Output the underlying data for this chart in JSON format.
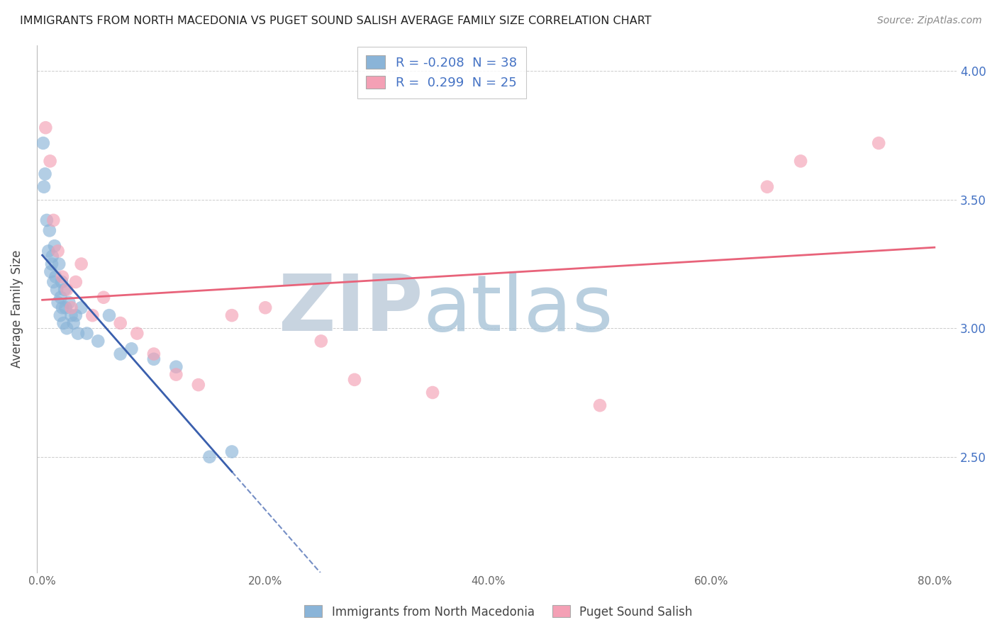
{
  "title": "IMMIGRANTS FROM NORTH MACEDONIA VS PUGET SOUND SALISH AVERAGE FAMILY SIZE CORRELATION CHART",
  "source": "Source: ZipAtlas.com",
  "ylabel": "Average Family Size",
  "xlabel_ticks": [
    "0.0%",
    "20.0%",
    "40.0%",
    "60.0%",
    "80.0%"
  ],
  "xlabel_vals": [
    0.0,
    20.0,
    40.0,
    60.0,
    80.0
  ],
  "ytick_labels": [
    "4.00",
    "3.50",
    "3.00",
    "2.50"
  ],
  "ytick_vals": [
    4.0,
    3.5,
    3.0,
    2.5
  ],
  "ylim": [
    2.05,
    4.1
  ],
  "xlim": [
    -0.5,
    82.0
  ],
  "blue_R": -0.208,
  "blue_N": 38,
  "pink_R": 0.299,
  "pink_N": 25,
  "blue_color": "#8ab4d8",
  "pink_color": "#f4a0b5",
  "blue_line_color": "#3a5fad",
  "pink_line_color": "#e8637a",
  "legend_text_color": "#4472c4",
  "watermark_zip_color": "#c8d4e0",
  "watermark_atlas_color": "#a8c4d8",
  "background_color": "#ffffff",
  "grid_color": "#cccccc",
  "blue_x": [
    0.08,
    0.15,
    0.25,
    0.4,
    0.55,
    0.65,
    0.75,
    0.85,
    0.9,
    1.0,
    1.1,
    1.2,
    1.3,
    1.4,
    1.5,
    1.6,
    1.65,
    1.75,
    1.8,
    1.9,
    2.0,
    2.1,
    2.2,
    2.4,
    2.6,
    2.8,
    3.0,
    3.2,
    3.5,
    4.0,
    5.0,
    6.0,
    7.0,
    8.0,
    10.0,
    12.0,
    15.0,
    17.0
  ],
  "blue_y": [
    3.72,
    3.55,
    3.6,
    3.42,
    3.3,
    3.38,
    3.22,
    3.25,
    3.28,
    3.18,
    3.32,
    3.2,
    3.15,
    3.1,
    3.25,
    3.05,
    3.12,
    3.18,
    3.08,
    3.02,
    3.15,
    3.08,
    3.0,
    3.1,
    3.05,
    3.02,
    3.05,
    2.98,
    3.08,
    2.98,
    2.95,
    3.05,
    2.9,
    2.92,
    2.88,
    2.85,
    2.5,
    2.52
  ],
  "pink_x": [
    0.3,
    0.7,
    1.0,
    1.4,
    1.8,
    2.2,
    2.6,
    3.0,
    3.5,
    4.5,
    5.5,
    7.0,
    8.5,
    10.0,
    12.0,
    14.0,
    17.0,
    20.0,
    25.0,
    28.0,
    35.0,
    50.0,
    65.0,
    68.0,
    75.0
  ],
  "pink_y": [
    3.78,
    3.65,
    3.42,
    3.3,
    3.2,
    3.15,
    3.08,
    3.18,
    3.25,
    3.05,
    3.12,
    3.02,
    2.98,
    2.9,
    2.82,
    2.78,
    3.05,
    3.08,
    2.95,
    2.8,
    2.75,
    2.7,
    3.55,
    3.65,
    3.72
  ],
  "blue_solid_end_x": 17.0,
  "pink_line_x_start": 0.0,
  "pink_line_x_end": 80.0
}
